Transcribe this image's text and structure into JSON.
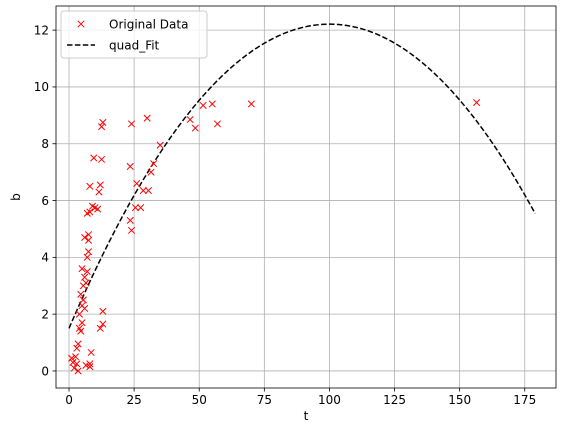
{
  "chart_data": {
    "type": "scatter",
    "xlabel": "t",
    "ylabel": "b",
    "xlim": [
      -5,
      187
    ],
    "ylim": [
      -0.6,
      12.85
    ],
    "xticks": [
      0,
      25,
      50,
      75,
      100,
      125,
      150,
      175
    ],
    "yticks": [
      0,
      2,
      4,
      6,
      8,
      10,
      12
    ],
    "grid": true,
    "legend_position": "top-left",
    "series": [
      {
        "name": "Original Data",
        "kind": "markers",
        "marker": "x",
        "color": "#ff0000",
        "points": [
          [
            1,
            0.45
          ],
          [
            1.5,
            0.3
          ],
          [
            2,
            0.1
          ],
          [
            2.5,
            0.5
          ],
          [
            3,
            0.25
          ],
          [
            3,
            0.8
          ],
          [
            3.5,
            0.0
          ],
          [
            3.5,
            0.95
          ],
          [
            4,
            1.5
          ],
          [
            4,
            2.0
          ],
          [
            4.5,
            1.4
          ],
          [
            4.5,
            2.7
          ],
          [
            5,
            1.7
          ],
          [
            5,
            2.3
          ],
          [
            5,
            3.6
          ],
          [
            5.5,
            2.5
          ],
          [
            5.5,
            3.0
          ],
          [
            6,
            2.2
          ],
          [
            6,
            3.3
          ],
          [
            6,
            4.7
          ],
          [
            6.5,
            0.2
          ],
          [
            6.5,
            3.1
          ],
          [
            7,
            3.5
          ],
          [
            7,
            5.55
          ],
          [
            7,
            4.0
          ],
          [
            7.5,
            4.2
          ],
          [
            7.5,
            4.6
          ],
          [
            7.5,
            4.8
          ],
          [
            8,
            0.15
          ],
          [
            8,
            0.25
          ],
          [
            8,
            5.6
          ],
          [
            8,
            6.5
          ],
          [
            8.5,
            0.65
          ],
          [
            9,
            5.8
          ],
          [
            9.5,
            7.5
          ],
          [
            10,
            5.75
          ],
          [
            11,
            5.7
          ],
          [
            11.5,
            6.3
          ],
          [
            12,
            1.5
          ],
          [
            12,
            6.55
          ],
          [
            12.5,
            7.45
          ],
          [
            12.5,
            8.6
          ],
          [
            13,
            1.65
          ],
          [
            13,
            2.1
          ],
          [
            13,
            8.75
          ],
          [
            23.5,
            7.2
          ],
          [
            23.5,
            5.3
          ],
          [
            24,
            4.95
          ],
          [
            24,
            8.7
          ],
          [
            25.5,
            5.75
          ],
          [
            26,
            6.6
          ],
          [
            27.5,
            5.75
          ],
          [
            28.5,
            6.35
          ],
          [
            30,
            8.9
          ],
          [
            30.5,
            6.35
          ],
          [
            31.5,
            7.0
          ],
          [
            32.5,
            7.3
          ],
          [
            35,
            7.95
          ],
          [
            46.5,
            8.85
          ],
          [
            48.5,
            8.55
          ],
          [
            51.5,
            9.35
          ],
          [
            55,
            9.4
          ],
          [
            57,
            8.7
          ],
          [
            70,
            9.4
          ],
          [
            156.5,
            9.45
          ]
        ]
      },
      {
        "name": "quad_Fit",
        "kind": "line",
        "style": "dashed",
        "color": "#000000",
        "coefficients": {
          "a": -0.00107,
          "b": 0.2141,
          "c": 1.5
        },
        "x_range": [
          0,
          179
        ]
      }
    ]
  }
}
